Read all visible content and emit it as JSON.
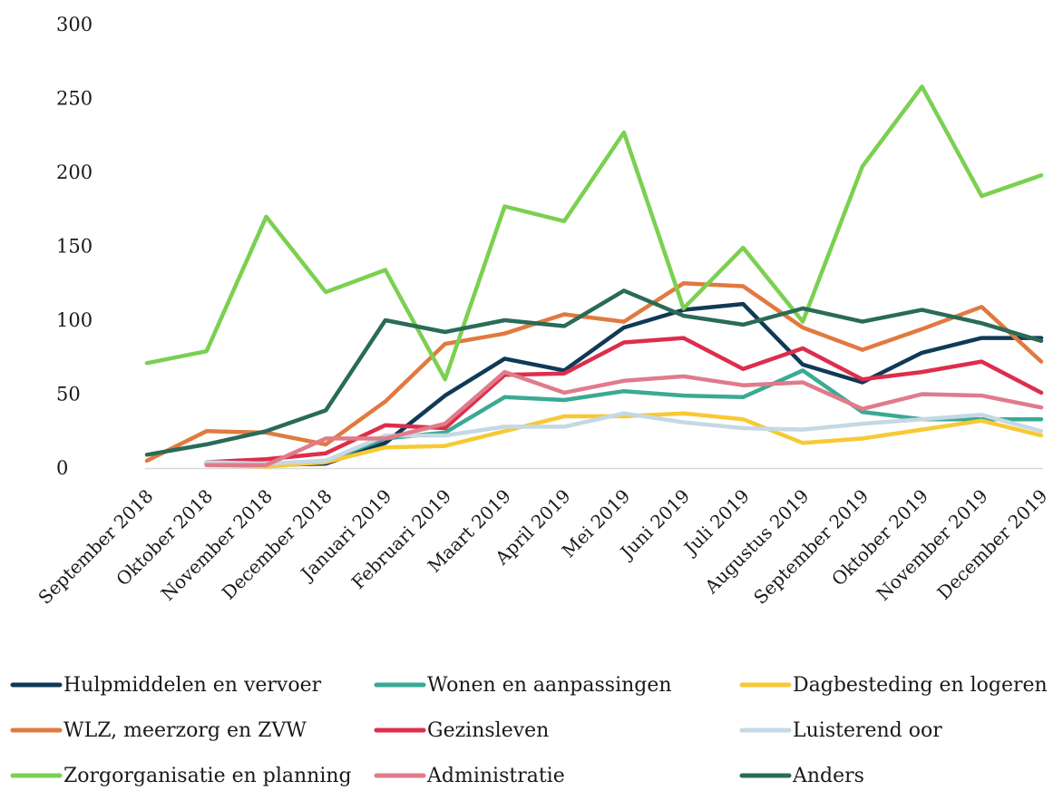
{
  "chart_data": {
    "type": "line",
    "title": "",
    "xlabel": "",
    "ylabel": "",
    "ylim": [
      0,
      300
    ],
    "yticks": [
      "0",
      "50",
      "100",
      "150",
      "200",
      "250",
      "300"
    ],
    "grid": false,
    "legend_position": "bottom",
    "categories": [
      "September 2018",
      "Oktober 2018",
      "November 2018",
      "December 2018",
      "Januari 2019",
      "Februari 2019",
      "Maart 2019",
      "April 2019",
      "Mei 2019",
      "Juni 2019",
      "Juli 2019",
      "Augustus 2019",
      "September 2019",
      "Oktober 2019",
      "November 2019",
      "December 2019"
    ],
    "series": [
      {
        "name": "Hulpmiddelen en vervoer",
        "color": "#0f3a57",
        "values": [
          null,
          3,
          2,
          3,
          17,
          49,
          74,
          66,
          95,
          107,
          111,
          70,
          58,
          78,
          88,
          88
        ]
      },
      {
        "name": "Wonen en aanpassingen",
        "color": "#3aaa94",
        "values": [
          null,
          2,
          2,
          5,
          20,
          24,
          48,
          46,
          52,
          49,
          48,
          66,
          38,
          33,
          33,
          33
        ]
      },
      {
        "name": "Dagbesteding en logeren",
        "color": "#f7c935",
        "values": [
          null,
          2,
          1,
          4,
          14,
          15,
          25,
          35,
          35,
          37,
          33,
          17,
          20,
          26,
          32,
          22
        ]
      },
      {
        "name": "WLZ, meerzorg en ZVW",
        "color": "#e07a3f",
        "values": [
          5,
          25,
          24,
          16,
          45,
          84,
          91,
          104,
          99,
          125,
          123,
          95,
          80,
          94,
          109,
          72
        ]
      },
      {
        "name": "Gezinsleven",
        "color": "#dd2e4b",
        "values": [
          null,
          4,
          6,
          10,
          29,
          27,
          63,
          64,
          85,
          88,
          67,
          81,
          60,
          65,
          72,
          51
        ]
      },
      {
        "name": "Luisterend oor",
        "color": "#c5d8e4",
        "values": [
          null,
          4,
          3,
          5,
          22,
          22,
          28,
          28,
          37,
          31,
          27,
          26,
          30,
          33,
          36,
          25
        ]
      },
      {
        "name": "Zorgorganisatie en planning",
        "color": "#7bd050",
        "values": [
          71,
          79,
          170,
          119,
          134,
          60,
          177,
          167,
          227,
          108,
          149,
          99,
          204,
          258,
          184,
          198
        ]
      },
      {
        "name": "Administratie",
        "color": "#e07b8b",
        "values": [
          null,
          2,
          2,
          20,
          20,
          30,
          65,
          51,
          59,
          62,
          56,
          58,
          40,
          50,
          49,
          41
        ]
      },
      {
        "name": "Anders",
        "color": "#2a6b58",
        "values": [
          9,
          16,
          25,
          39,
          100,
          92,
          100,
          96,
          120,
          103,
          97,
          108,
          99,
          107,
          98,
          86
        ]
      }
    ]
  }
}
